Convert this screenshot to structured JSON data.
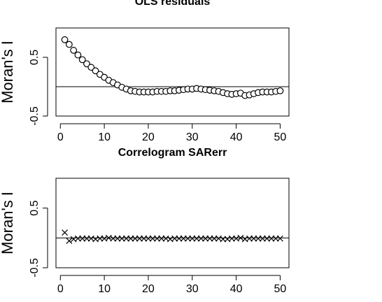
{
  "chart_data": [
    {
      "type": "scatter",
      "title": "OLS residuals",
      "xlabel": "",
      "ylabel": "Moran's I",
      "xlim": [
        -1,
        52
      ],
      "ylim": [
        -0.5,
        1.0
      ],
      "x_ticks": [
        0,
        10,
        20,
        30,
        40,
        50
      ],
      "x_tick_labels": [
        "0",
        "10",
        "20",
        "30",
        "40",
        "50"
      ],
      "y_ticks": [
        -0.5,
        0.5
      ],
      "y_tick_labels": [
        "-0.5",
        "0.5"
      ],
      "reference_line": 0,
      "marker": "circle",
      "series": [
        {
          "x": [
            1,
            2,
            3,
            4,
            5,
            6,
            7,
            8,
            9,
            10,
            11,
            12,
            13,
            14,
            15,
            16,
            17,
            18,
            19,
            20,
            21,
            22,
            23,
            24,
            25,
            26,
            27,
            28,
            29,
            30,
            31,
            32,
            33,
            34,
            35,
            36,
            37,
            38,
            39,
            40,
            41,
            42,
            43,
            44,
            45,
            46,
            47,
            48,
            49,
            50
          ],
          "values": [
            0.8,
            0.72,
            0.62,
            0.54,
            0.46,
            0.39,
            0.33,
            0.27,
            0.21,
            0.16,
            0.11,
            0.07,
            0.03,
            -0.01,
            -0.04,
            -0.07,
            -0.08,
            -0.09,
            -0.09,
            -0.09,
            -0.09,
            -0.08,
            -0.08,
            -0.08,
            -0.07,
            -0.07,
            -0.06,
            -0.05,
            -0.04,
            -0.04,
            -0.03,
            -0.04,
            -0.05,
            -0.06,
            -0.07,
            -0.08,
            -0.1,
            -0.12,
            -0.13,
            -0.12,
            -0.11,
            -0.15,
            -0.14,
            -0.12,
            -0.1,
            -0.09,
            -0.09,
            -0.09,
            -0.08,
            -0.07
          ]
        }
      ]
    },
    {
      "type": "scatter",
      "title": "Correlogram SARerr",
      "xlabel": "",
      "ylabel": "Moran's I",
      "xlim": [
        -1,
        52
      ],
      "ylim": [
        -0.5,
        1.0
      ],
      "x_ticks": [
        0,
        10,
        20,
        30,
        40,
        50
      ],
      "x_tick_labels": [
        "0",
        "10",
        "20",
        "30",
        "40",
        "50"
      ],
      "y_ticks": [
        -0.5,
        0.5
      ],
      "y_tick_labels": [
        "-0.5",
        "0.5"
      ],
      "reference_line": 0,
      "marker": "cross",
      "series": [
        {
          "x": [
            1,
            2,
            3,
            4,
            5,
            6,
            7,
            8,
            9,
            10,
            11,
            12,
            13,
            14,
            15,
            16,
            17,
            18,
            19,
            20,
            21,
            22,
            23,
            24,
            25,
            26,
            27,
            28,
            29,
            30,
            31,
            32,
            33,
            34,
            35,
            36,
            37,
            38,
            39,
            40,
            41,
            42,
            43,
            44,
            45,
            46,
            47,
            48,
            49,
            50
          ],
          "values": [
            0.09,
            -0.05,
            -0.02,
            -0.01,
            -0.01,
            -0.01,
            -0.01,
            -0.02,
            -0.01,
            -0.01,
            0.0,
            -0.01,
            -0.01,
            -0.01,
            -0.01,
            -0.01,
            -0.01,
            -0.01,
            -0.01,
            -0.01,
            -0.01,
            -0.01,
            -0.01,
            -0.01,
            -0.02,
            -0.01,
            -0.01,
            -0.01,
            -0.01,
            -0.01,
            -0.01,
            -0.01,
            -0.01,
            -0.01,
            -0.01,
            -0.01,
            -0.02,
            -0.02,
            -0.01,
            -0.01,
            0.0,
            -0.02,
            -0.01,
            -0.01,
            -0.01,
            -0.01,
            -0.01,
            -0.01,
            -0.01,
            -0.01
          ]
        }
      ]
    }
  ]
}
